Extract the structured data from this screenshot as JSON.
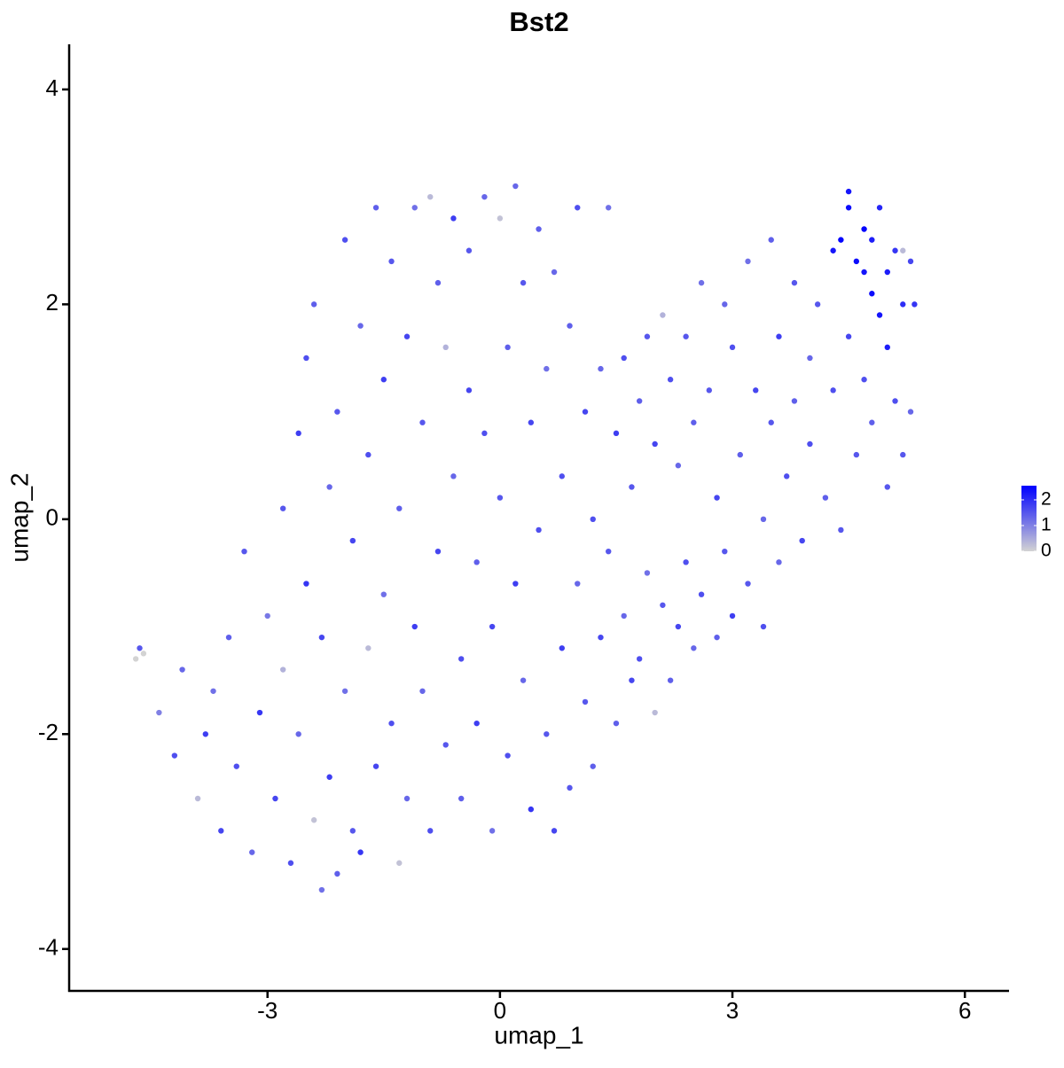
{
  "chart_data": {
    "type": "scatter",
    "title": "Bst2",
    "x_label": "umap_1",
    "y_label": "umap_2",
    "xlim": [
      -5.56,
      6.57
    ],
    "ylim": [
      -4.39,
      4.42
    ],
    "xticks": [
      -3,
      0,
      3,
      6
    ],
    "yticks": [
      -4,
      -2,
      0,
      2,
      4
    ],
    "color_low": "#d3d3d3",
    "color_high": "#0000ff",
    "clim": [
      0,
      2.55
    ],
    "colorbar_ticks": [
      0,
      1,
      2
    ],
    "x": [
      -4.6,
      -4.65,
      -4.7,
      -4.4,
      -4.2,
      -4.1,
      -3.9,
      -3.8,
      -3.7,
      -3.6,
      -3.5,
      -3.4,
      -3.3,
      -3.2,
      -3.1,
      -3.0,
      -2.9,
      -2.8,
      -2.8,
      -2.7,
      -2.6,
      -2.6,
      -2.5,
      -2.5,
      -2.4,
      -2.4,
      -2.3,
      -2.3,
      -2.2,
      -2.2,
      -2.1,
      -2.1,
      -2.0,
      -2.0,
      -1.9,
      -1.9,
      -1.8,
      -1.8,
      -1.7,
      -1.7,
      -1.6,
      -1.6,
      -1.5,
      -1.5,
      -1.4,
      -1.4,
      -1.3,
      -1.3,
      -1.2,
      -1.2,
      -1.1,
      -1.1,
      -1.0,
      -1.0,
      -0.9,
      -0.9,
      -0.8,
      -0.8,
      -0.7,
      -0.7,
      -0.6,
      -0.6,
      -0.5,
      -0.5,
      -0.4,
      -0.4,
      -0.3,
      -0.3,
      -0.2,
      -0.2,
      -0.1,
      -0.1,
      0.0,
      0.0,
      0.1,
      0.1,
      0.2,
      0.2,
      0.3,
      0.3,
      0.4,
      0.4,
      0.5,
      0.5,
      0.6,
      0.6,
      0.7,
      0.7,
      0.8,
      0.8,
      0.9,
      0.9,
      1.0,
      1.0,
      1.1,
      1.1,
      1.2,
      1.2,
      1.3,
      1.3,
      1.4,
      1.4,
      1.5,
      1.5,
      1.6,
      1.6,
      1.7,
      1.7,
      1.8,
      1.8,
      1.9,
      1.9,
      2.0,
      2.0,
      2.1,
      2.1,
      2.2,
      2.2,
      2.3,
      2.3,
      2.4,
      2.4,
      2.5,
      2.5,
      2.6,
      2.6,
      2.7,
      2.8,
      2.8,
      2.9,
      2.9,
      3.0,
      3.0,
      3.1,
      3.2,
      3.2,
      3.3,
      3.4,
      3.4,
      3.5,
      3.5,
      3.6,
      3.6,
      3.7,
      3.8,
      3.8,
      3.9,
      4.0,
      4.0,
      4.1,
      4.2,
      4.3,
      4.3,
      4.4,
      4.4,
      4.5,
      4.5,
      4.5,
      4.6,
      4.6,
      4.7,
      4.7,
      4.7,
      4.8,
      4.8,
      4.8,
      4.9,
      4.9,
      5.0,
      5.0,
      5.0,
      5.1,
      5.1,
      5.2,
      5.2,
      5.3,
      5.3,
      5.35,
      5.2
    ],
    "y": [
      -1.25,
      -1.2,
      -1.3,
      -1.8,
      -2.2,
      -1.4,
      -2.6,
      -2.0,
      -1.6,
      -2.9,
      -1.1,
      -2.3,
      -0.3,
      -3.1,
      -1.8,
      -0.9,
      -2.6,
      0.1,
      -1.4,
      -3.2,
      0.8,
      -2.0,
      1.5,
      -0.6,
      -2.8,
      2.0,
      -3.45,
      -1.1,
      0.3,
      -2.4,
      1.0,
      -3.3,
      2.6,
      -1.6,
      -0.2,
      -2.9,
      1.8,
      -3.1,
      0.6,
      -1.2,
      2.9,
      -2.3,
      1.3,
      -0.7,
      -1.9,
      2.4,
      -3.2,
      0.1,
      1.7,
      -2.6,
      2.9,
      -1.0,
      0.9,
      -1.6,
      3.0,
      -2.9,
      2.2,
      -0.3,
      1.6,
      -2.1,
      2.8,
      0.4,
      -1.3,
      -2.6,
      1.2,
      2.5,
      -0.4,
      -1.9,
      0.8,
      3.0,
      -2.9,
      -1.0,
      2.8,
      0.2,
      1.6,
      -2.2,
      3.1,
      -0.6,
      2.2,
      -1.5,
      0.9,
      -2.7,
      2.7,
      -0.1,
      1.4,
      -2.0,
      -2.9,
      2.3,
      0.4,
      -1.2,
      1.8,
      -2.5,
      -0.6,
      2.9,
      1.0,
      -1.7,
      -2.3,
      0.0,
      1.4,
      -1.1,
      2.9,
      -0.3,
      0.8,
      -1.9,
      1.5,
      -0.9,
      -1.5,
      0.3,
      1.1,
      -1.3,
      -0.5,
      1.7,
      0.7,
      -1.8,
      1.9,
      -0.8,
      1.3,
      -1.5,
      0.5,
      -1.0,
      1.7,
      -0.4,
      -1.2,
      0.9,
      2.2,
      -0.7,
      1.2,
      0.2,
      -1.1,
      2.0,
      -0.3,
      1.6,
      -0.9,
      0.6,
      2.4,
      -0.6,
      1.2,
      0.0,
      -1.0,
      2.6,
      0.9,
      1.7,
      -0.4,
      0.4,
      2.2,
      1.1,
      -0.2,
      1.5,
      0.7,
      2.0,
      0.2,
      2.5,
      1.2,
      2.6,
      -0.1,
      3.05,
      2.9,
      1.7,
      2.4,
      0.6,
      2.7,
      2.3,
      1.3,
      2.6,
      2.1,
      0.9,
      2.9,
      1.9,
      2.3,
      0.3,
      1.6,
      2.5,
      1.1,
      2.0,
      2.5,
      2.4,
      1.0,
      2.0,
      0.6
    ],
    "values": [
      0,
      1.5,
      0,
      1.0,
      1.6,
      1.3,
      0.3,
      1.8,
      1.2,
      1.7,
      1.4,
      1.6,
      1.5,
      1.3,
      1.9,
      1.1,
      1.7,
      1.5,
      0.4,
      1.6,
      1.8,
      1.3,
      1.6,
      1.9,
      0.2,
      1.4,
      1.2,
      1.7,
      1.3,
      1.8,
      1.5,
      1.4,
      1.6,
      1.2,
      1.7,
      1.5,
      1.3,
      1.9,
      1.6,
      0.3,
      1.4,
      1.7,
      1.8,
      1.2,
      1.6,
      1.5,
      0.2,
      1.4,
      1.7,
      1.3,
      1.2,
      1.8,
      1.5,
      1.3,
      0.3,
      1.6,
      1.4,
      1.7,
      0.4,
      1.5,
      1.8,
      1.3,
      1.6,
      1.4,
      1.7,
      1.5,
      1.4,
      1.8,
      1.6,
      1.3,
      1.2,
      1.7,
      0.2,
      1.5,
      1.4,
      1.6,
      1.3,
      1.8,
      1.5,
      1.3,
      1.7,
      1.9,
      1.4,
      1.6,
      1.2,
      1.5,
      1.7,
      1.3,
      1.6,
      1.8,
      1.4,
      1.5,
      1.3,
      1.6,
      1.7,
      1.5,
      1.4,
      1.6,
      1.3,
      1.7,
      1.2,
      1.5,
      1.8,
      1.4,
      1.6,
      1.3,
      1.7,
      1.5,
      1.4,
      1.6,
      1.2,
      1.5,
      1.7,
      0.3,
      0.4,
      1.5,
      1.6,
      1.4,
      1.3,
      1.7,
      1.5,
      1.6,
      1.3,
      1.4,
      1.2,
      1.6,
      1.5,
      1.7,
      1.4,
      1.3,
      1.5,
      1.6,
      1.8,
      1.4,
      1.2,
      1.5,
      1.7,
      1.3,
      1.6,
      1.4,
      1.5,
      1.8,
      1.3,
      1.6,
      1.5,
      1.4,
      1.7,
      1.3,
      1.6,
      1.5,
      1.4,
      2.3,
      1.6,
      2.5,
      1.5,
      2.3,
      2.4,
      1.7,
      2.4,
      1.5,
      2.5,
      2.3,
      1.6,
      2.2,
      2.4,
      1.4,
      2.1,
      2.3,
      2.2,
      1.5,
      2.2,
      1.9,
      1.6,
      2.0,
      0.3,
      1.7,
      1.3,
      1.9,
      1.5
    ]
  }
}
